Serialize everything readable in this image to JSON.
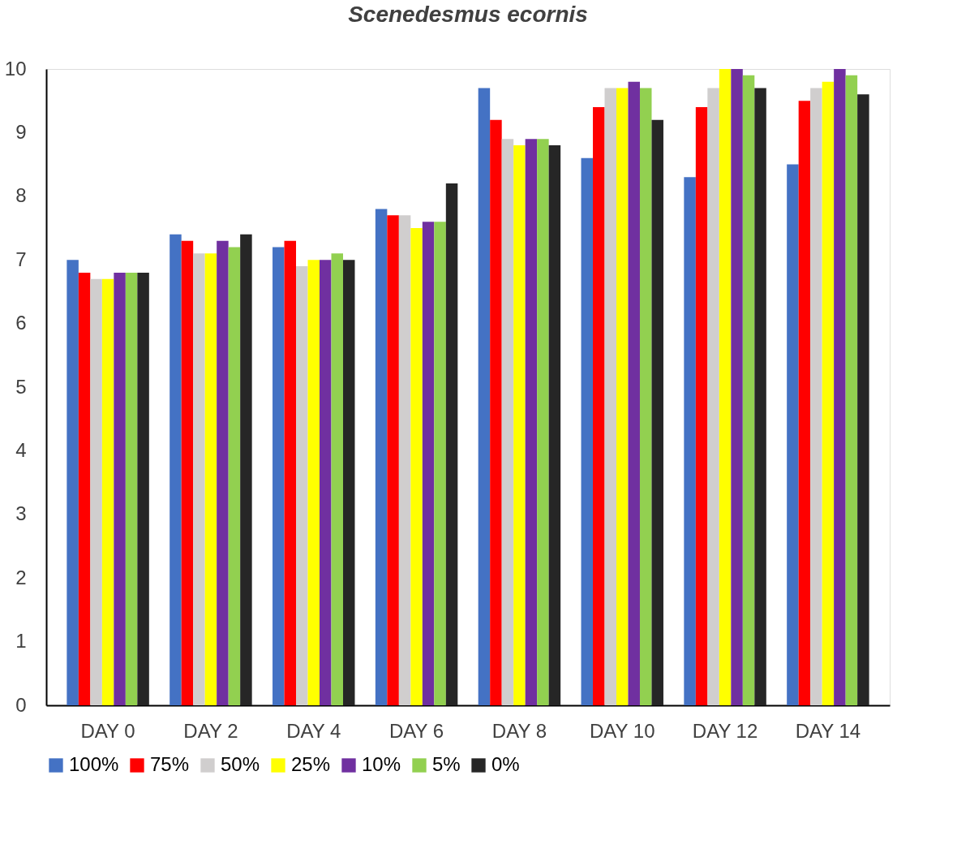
{
  "chart_data": {
    "type": "bar",
    "title": "Scenedesmus ecornis",
    "categories": [
      "DAY 0",
      "DAY 2",
      "DAY 4",
      "DAY 6",
      "DAY 8",
      "DAY 10",
      "DAY 12",
      "DAY 14"
    ],
    "series": [
      {
        "name": "100%",
        "color": "#4472c4",
        "values": [
          7.0,
          7.4,
          7.2,
          7.8,
          9.7,
          8.6,
          8.3,
          8.5
        ]
      },
      {
        "name": "75%",
        "color": "#ff0000",
        "values": [
          6.8,
          7.3,
          7.3,
          7.7,
          9.2,
          9.4,
          9.4,
          9.5
        ]
      },
      {
        "name": "50%",
        "color": "#d0cece",
        "values": [
          6.7,
          7.1,
          6.9,
          7.7,
          8.9,
          9.7,
          9.7,
          9.7
        ]
      },
      {
        "name": "25%",
        "color": "#ffff00",
        "values": [
          6.7,
          7.1,
          7.0,
          7.5,
          8.8,
          9.7,
          10.0,
          9.8
        ]
      },
      {
        "name": "10%",
        "color": "#7030a0",
        "values": [
          6.8,
          7.3,
          7.0,
          7.6,
          8.9,
          9.8,
          10.0,
          10.0
        ]
      },
      {
        "name": "5%",
        "color": "#92d050",
        "values": [
          6.8,
          7.2,
          7.1,
          7.6,
          8.9,
          9.7,
          9.9,
          9.9
        ]
      },
      {
        "name": "0%",
        "color": "#262626",
        "values": [
          6.8,
          7.4,
          7.0,
          8.2,
          8.8,
          9.2,
          9.7,
          9.6
        ]
      }
    ],
    "ylim": [
      0,
      10
    ],
    "yticks": [
      0,
      1,
      2,
      3,
      4,
      5,
      6,
      7,
      8,
      9,
      10
    ],
    "grid": false,
    "legend": "bottom"
  }
}
